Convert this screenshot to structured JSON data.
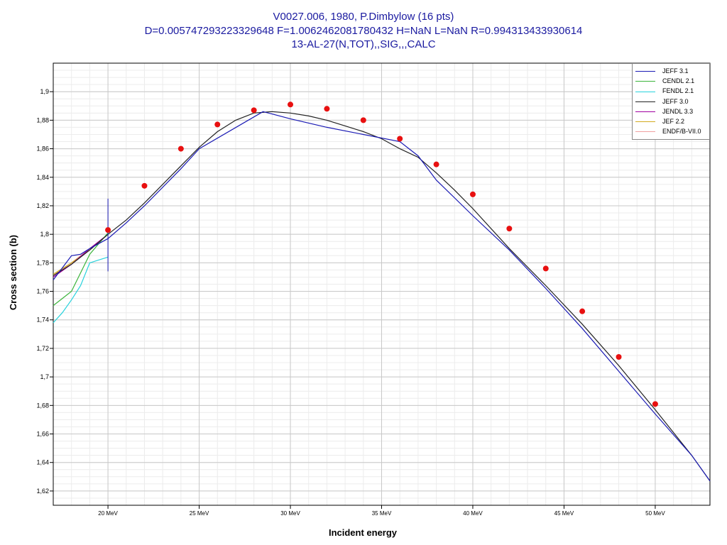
{
  "title": {
    "line1": "V0027.006, 1980, P.Dimbylow (16 pts)",
    "line2": "D=0.005747293223329648 F=1.0062462081780432 H=NaN L=NaN R=0.994313433930614",
    "line3": "13-AL-27(N,TOT),,SIG,,,CALC"
  },
  "colors": {
    "title": "#1a1aa0",
    "jeff31": "#1a1ab4",
    "cendl21": "#3cb43c",
    "fendl21": "#28d2dc",
    "jeff30": "#222222",
    "jendl33": "#a000a0",
    "jef22": "#d2aa1e",
    "endfb70": "#f0a0a0",
    "exp": "#e81010"
  },
  "legend": [
    {
      "label": "JEFF 3.1",
      "color": "#1a1ab4"
    },
    {
      "label": "CENDL 2.1",
      "color": "#3cb43c"
    },
    {
      "label": "FENDL 2.1",
      "color": "#28d2dc"
    },
    {
      "label": "JEFF 3.0",
      "color": "#222222"
    },
    {
      "label": "JENDL 3.3",
      "color": "#a000a0"
    },
    {
      "label": "JEF 2.2",
      "color": "#d2aa1e"
    },
    {
      "label": "ENDF/B-VII.0",
      "color": "#f0a0a0"
    }
  ],
  "chart_data": {
    "type": "line",
    "xlabel": "Incident energy",
    "ylabel": "Cross section (b)",
    "xlim": [
      17,
      53
    ],
    "ylim": [
      1.61,
      1.92
    ],
    "xticks": [
      20,
      25,
      30,
      35,
      40,
      45,
      50
    ],
    "xtick_labels": [
      "20 MeV",
      "25 MeV",
      "30 MeV",
      "35 MeV",
      "40 MeV",
      "45 MeV",
      "50 MeV"
    ],
    "yticks": [
      1.62,
      1.64,
      1.66,
      1.68,
      1.7,
      1.72,
      1.74,
      1.76,
      1.78,
      1.8,
      1.82,
      1.84,
      1.86,
      1.88,
      1.9
    ],
    "ytick_labels": [
      "1,62",
      "1,64",
      "1,66",
      "1,68",
      "1,7",
      "1,72",
      "1,74",
      "1,76",
      "1,78",
      "1,8",
      "1,82",
      "1,84",
      "1,86",
      "1,88",
      "1,9"
    ],
    "grid": true,
    "legend_position": "top-right",
    "series": [
      {
        "name": "JEFF 3.1",
        "color": "#1a1ab4",
        "x": [
          17,
          18,
          18.5,
          19,
          20,
          21,
          22,
          24,
          25,
          28.5,
          30,
          32,
          34,
          36,
          37,
          38,
          40,
          42,
          44,
          46,
          48,
          50,
          52,
          53
        ],
        "y": [
          1.768,
          1.785,
          1.786,
          1.79,
          1.797,
          1.808,
          1.82,
          1.846,
          1.86,
          1.886,
          1.881,
          1.875,
          1.87,
          1.865,
          1.855,
          1.838,
          1.813,
          1.789,
          1.762,
          1.734,
          1.704,
          1.674,
          1.645,
          1.627
        ]
      },
      {
        "name": "CENDL 2.1",
        "color": "#3cb43c",
        "x": [
          17,
          17.5,
          18,
          19,
          20
        ],
        "y": [
          1.75,
          1.755,
          1.76,
          1.786,
          1.801
        ]
      },
      {
        "name": "FENDL 2.1",
        "color": "#28d2dc",
        "x": [
          17,
          17.5,
          18,
          18.5,
          19,
          19.5,
          20
        ],
        "y": [
          1.738,
          1.745,
          1.754,
          1.764,
          1.78,
          1.782,
          1.784
        ]
      },
      {
        "name": "JEFF 3.0",
        "color": "#222222",
        "x": [
          17,
          18,
          19,
          20,
          21,
          22,
          23,
          24,
          25,
          26,
          27,
          28,
          29,
          30,
          31,
          32,
          33,
          34,
          35,
          36,
          37,
          38,
          39,
          40,
          42,
          44,
          46,
          48,
          50,
          52,
          53
        ],
        "y": [
          1.771,
          1.779,
          1.789,
          1.8,
          1.81,
          1.822,
          1.835,
          1.848,
          1.861,
          1.872,
          1.88,
          1.885,
          1.886,
          1.885,
          1.883,
          1.88,
          1.876,
          1.872,
          1.867,
          1.86,
          1.854,
          1.843,
          1.831,
          1.818,
          1.79,
          1.764,
          1.737,
          1.708,
          1.677,
          1.645,
          1.627
        ]
      },
      {
        "name": "JENDL 3.3",
        "color": "#a000a0",
        "x": [
          17,
          18,
          19,
          20
        ],
        "y": [
          1.77,
          1.779,
          1.79,
          1.8
        ]
      },
      {
        "name": "JEF 2.2",
        "color": "#d2aa1e",
        "x": [
          17,
          18,
          19,
          20
        ],
        "y": [
          1.772,
          1.78,
          1.789,
          1.8
        ]
      },
      {
        "name": "ENDF/B-VII.0",
        "color": "#f0a0a0",
        "x": [
          17,
          18,
          19,
          20
        ],
        "y": [
          1.771,
          1.78,
          1.79,
          1.8
        ]
      }
    ],
    "experimental": {
      "color": "#e81010",
      "x": [
        20,
        22,
        24,
        26,
        28,
        30,
        32,
        34,
        36,
        38,
        40,
        42,
        44,
        46,
        48,
        50
      ],
      "y": [
        1.803,
        1.834,
        1.86,
        1.877,
        1.887,
        1.891,
        1.888,
        1.88,
        1.867,
        1.849,
        1.828,
        1.804,
        1.776,
        1.746,
        1.714,
        1.681
      ],
      "error_bar": {
        "x": 20,
        "low": 1.774,
        "high": 1.825
      }
    }
  }
}
